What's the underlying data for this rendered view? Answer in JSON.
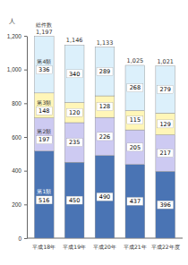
{
  "chart_data": {
    "type": "bar",
    "stacked": true,
    "data_labels": true,
    "grid": false,
    "y_label": "人",
    "categories": [
      "平成18年",
      "平成19年",
      "平成20年",
      "平成21年",
      "平成22年度"
    ],
    "series": [
      {
        "name": "第1類",
        "color": "#4a74b4",
        "values": [
          516,
          450,
          490,
          437,
          396
        ]
      },
      {
        "name": "第2類",
        "color": "#cdcaf2",
        "values": [
          197,
          235,
          226,
          205,
          217
        ]
      },
      {
        "name": "第3類",
        "color": "#fff6b8",
        "values": [
          148,
          120,
          128,
          115,
          129
        ]
      },
      {
        "name": "第4類",
        "color": "#dcf0fb",
        "values": [
          336,
          340,
          289,
          268,
          279
        ]
      }
    ],
    "total_title": "総件数",
    "totals": [
      1197,
      1146,
      1133,
      1025,
      1021
    ],
    "total_labels": [
      "1,197",
      "1,146",
      "1,133",
      "1,025",
      "1,021"
    ],
    "ylim": [
      0,
      1200
    ],
    "yticks": [
      0,
      200,
      400,
      600,
      800,
      {
        "value": 1000,
        "label": "1,000"
      },
      {
        "value": 1200,
        "label": "1,200"
      }
    ]
  }
}
